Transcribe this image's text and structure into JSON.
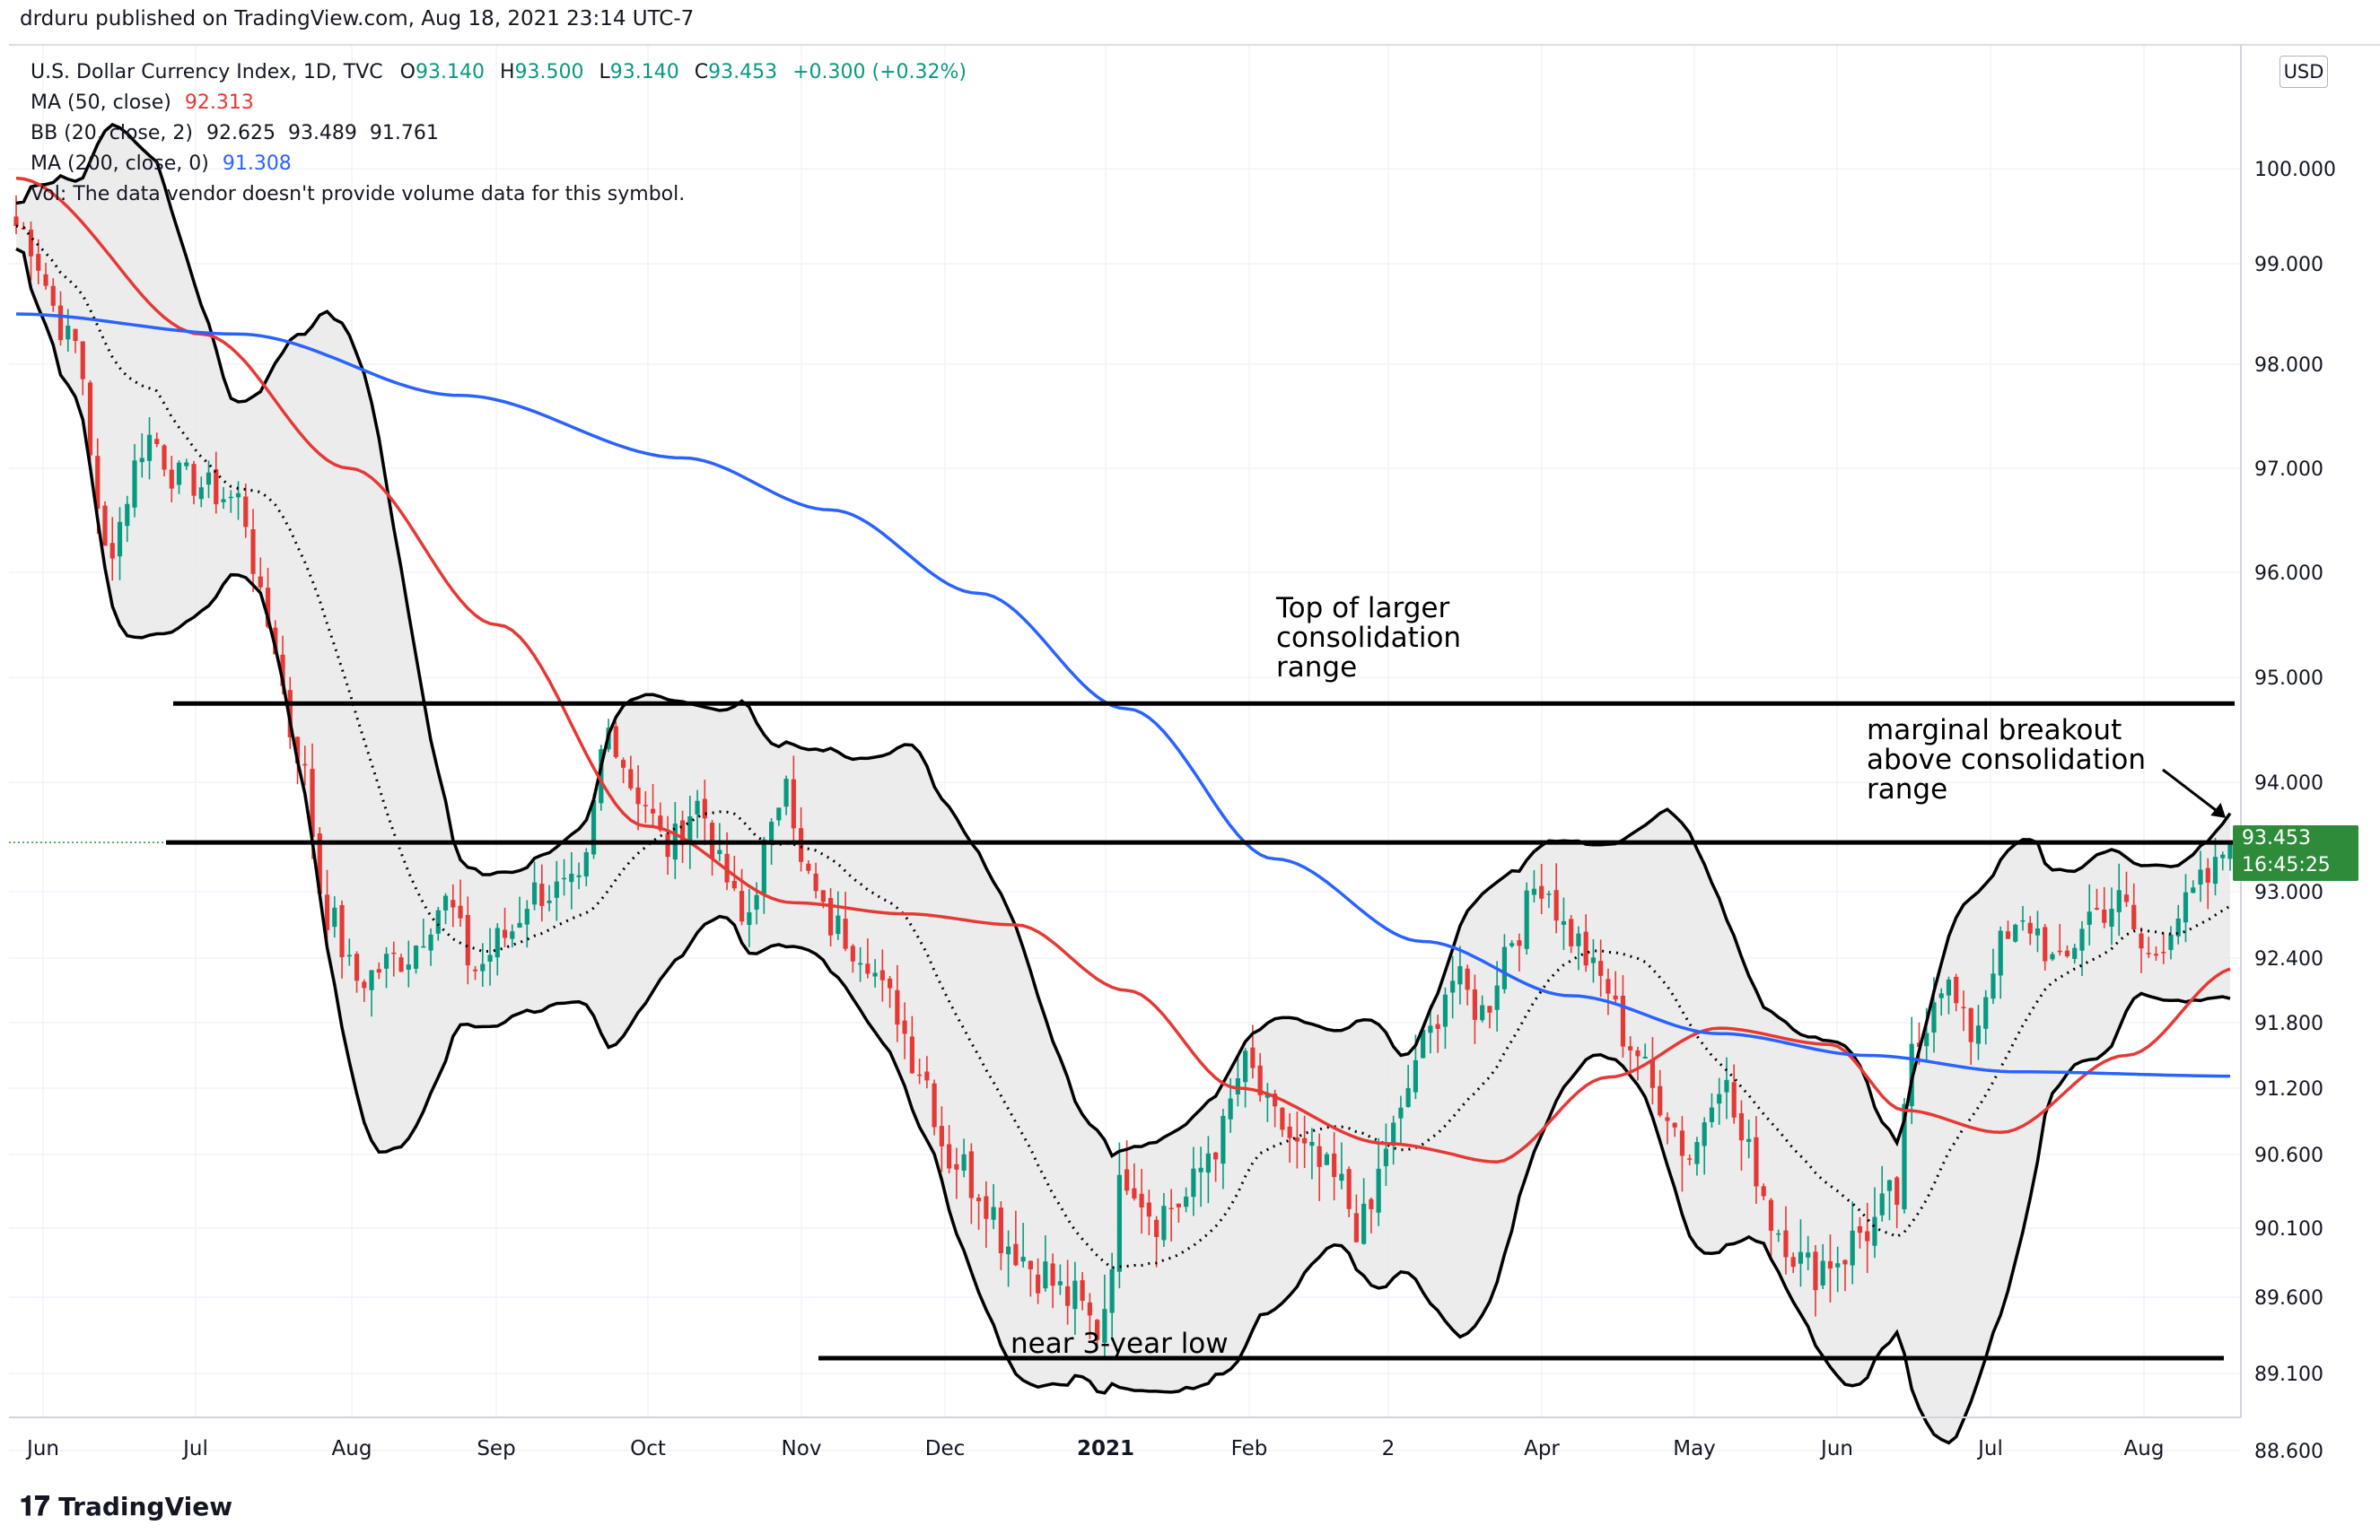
{
  "header": {
    "published": "drduru published on TradingView.com, Aug 18, 2021 23:14 UTC-7",
    "symbol": "U.S. Dollar Currency Index, 1D, TVC",
    "ohlc": {
      "o_label": "O",
      "o": "93.140",
      "h_label": "H",
      "h": "93.500",
      "l_label": "L",
      "l": "93.140",
      "c_label": "C",
      "c": "93.453",
      "change": "+0.300 (+0.32%)"
    },
    "ma50_label": "MA (50, close)",
    "ma50_value": "92.313",
    "bb_label": "BB (20, close, 2)",
    "bb_values": "92.625  93.489  91.761",
    "ma200_label": "MA (200, close, 0)",
    "ma200_value": "91.308",
    "vol_note": "Vol: The data vendor doesn't provide volume data for this symbol."
  },
  "currency": "USD",
  "last_price": {
    "value": "93.453",
    "countdown": "16:45:25"
  },
  "footer_brand": "TradingView",
  "annotations": {
    "top_range": "Top of larger\nconsolidation\nrange",
    "breakout": "marginal breakout\nabove consolidation\nrange",
    "low": "near 3-year low"
  },
  "colors": {
    "up": "#089981",
    "down": "#e53935",
    "ma50": "#e53935",
    "ma200": "#2962ff",
    "bb": "#000000",
    "bb_fill": "#e9e9e9",
    "last": "#2e8b3a"
  },
  "chart_data": {
    "type": "candlestick",
    "y_ticks": [
      100.0,
      99.0,
      98.0,
      97.0,
      96.0,
      95.0,
      94.0,
      93.0,
      92.4,
      91.8,
      91.2,
      90.6,
      90.1,
      89.6,
      89.1,
      88.6
    ],
    "y_tick_labels": [
      "100.000",
      "99.000",
      "98.000",
      "97.000",
      "96.000",
      "95.000",
      "94.000",
      "93.000",
      "92.400",
      "91.800",
      "91.200",
      "90.600",
      "90.100",
      "89.600",
      "89.100",
      "88.600"
    ],
    "x_labels": [
      "Jun",
      "Jul",
      "Aug",
      "Sep",
      "Oct",
      "Nov",
      "Dec",
      "2021",
      "Feb",
      "2",
      "Apr",
      "May",
      "Jun",
      "Jul",
      "Aug"
    ],
    "resistance_level": 94.75,
    "consolidation_top": 93.45,
    "support_level": 89.2,
    "ma50_anchors": [
      [
        0,
        99.9
      ],
      [
        25,
        98.3
      ],
      [
        45,
        97.0
      ],
      [
        65,
        95.5
      ],
      [
        85,
        93.6
      ],
      [
        105,
        92.9
      ],
      [
        120,
        92.8
      ],
      [
        135,
        92.7
      ],
      [
        150,
        92.1
      ],
      [
        165,
        91.2
      ],
      [
        185,
        90.7
      ],
      [
        200,
        90.55
      ],
      [
        215,
        91.3
      ],
      [
        230,
        91.75
      ],
      [
        245,
        91.6
      ],
      [
        255,
        91.0
      ],
      [
        268,
        90.8
      ],
      [
        285,
        91.5
      ],
      [
        300,
        92.31
      ]
    ],
    "ma200_anchors": [
      [
        0,
        98.5
      ],
      [
        30,
        98.3
      ],
      [
        60,
        97.7
      ],
      [
        90,
        97.1
      ],
      [
        110,
        96.6
      ],
      [
        130,
        95.8
      ],
      [
        150,
        94.7
      ],
      [
        170,
        93.3
      ],
      [
        190,
        92.55
      ],
      [
        210,
        92.05
      ],
      [
        230,
        91.7
      ],
      [
        250,
        91.5
      ],
      [
        270,
        91.35
      ],
      [
        300,
        91.31
      ]
    ]
  }
}
